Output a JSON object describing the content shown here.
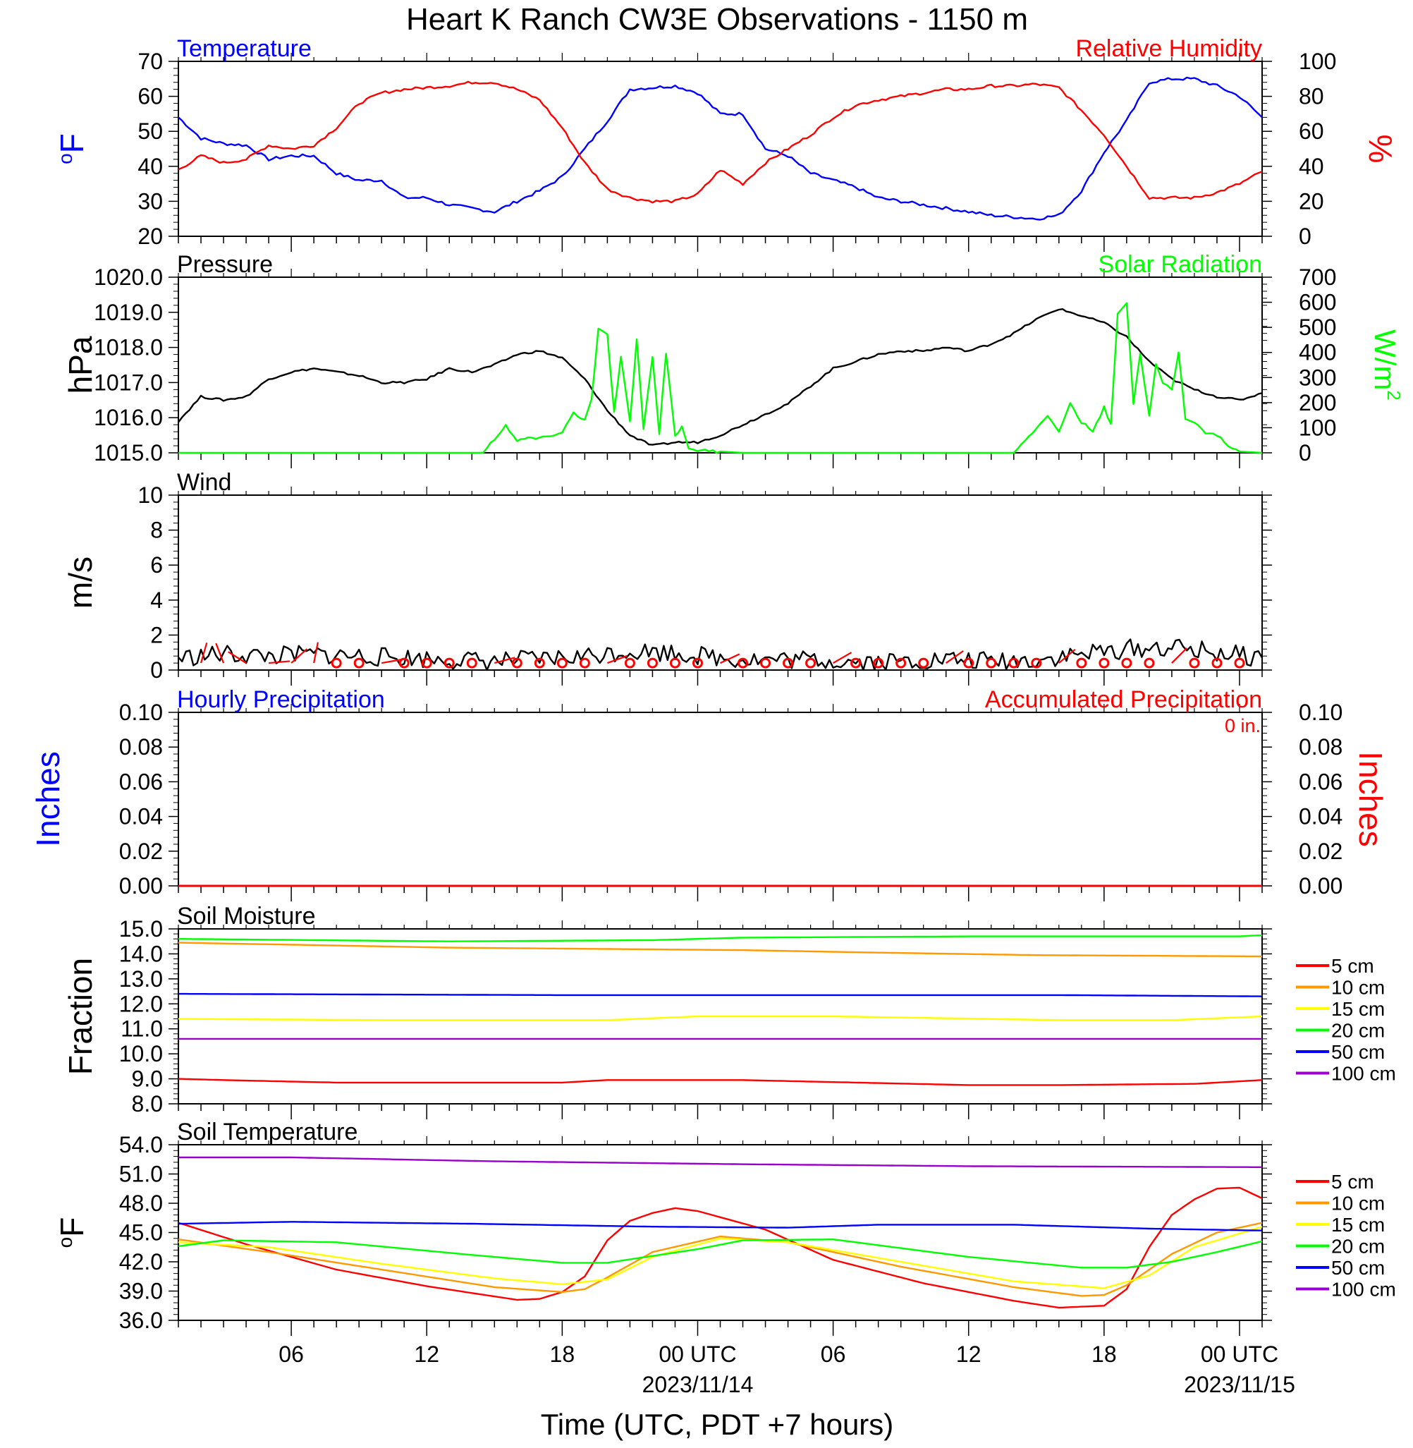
{
  "page": {
    "title": "Heart K Ranch CW3E Observations - 1150 m",
    "xlabel": "Time (UTC, PDT +7 hours)",
    "x_ticks": [
      {
        "hour": 6,
        "label": "06",
        "date": ""
      },
      {
        "hour": 12,
        "label": "12",
        "date": ""
      },
      {
        "hour": 18,
        "label": "18",
        "date": ""
      },
      {
        "hour": 24,
        "label": "00 UTC",
        "date": "2023/11/14"
      },
      {
        "hour": 30,
        "label": "06",
        "date": ""
      },
      {
        "hour": 36,
        "label": "12",
        "date": ""
      },
      {
        "hour": 42,
        "label": "18",
        "date": ""
      },
      {
        "hour": 48,
        "label": "00 UTC",
        "date": "2023/11/15"
      }
    ]
  },
  "chart_data": [
    {
      "id": "temp_rh",
      "type": "line",
      "x_unit": "hours UTC from 2023/11/13 00 UTC",
      "xlim": [
        1,
        49
      ],
      "left_title": "Temperature",
      "right_title": "Relative Humidity",
      "ylabel": "oF",
      "y2label": "%",
      "ylim": [
        20,
        70
      ],
      "y2lim": [
        0,
        100
      ],
      "yticks": [
        "20",
        "30",
        "40",
        "50",
        "60",
        "70"
      ],
      "y2ticks": [
        "0",
        "20",
        "40",
        "60",
        "80",
        "100"
      ],
      "series": [
        {
          "name": "Temperature",
          "axis": "left",
          "color": "#0000ff",
          "x": [
            1,
            2,
            3,
            4,
            5,
            6,
            7,
            8,
            9,
            10,
            11,
            12,
            13,
            14,
            15,
            16,
            17,
            18,
            19,
            20,
            21,
            22,
            23,
            24,
            25,
            26,
            27,
            28,
            29,
            30,
            31,
            32,
            33,
            34,
            35,
            36,
            37,
            38,
            39,
            40,
            41,
            42,
            43,
            44,
            45,
            46,
            47,
            48,
            49
          ],
          "y": [
            54,
            48,
            46.5,
            46,
            42,
            43,
            43,
            38,
            36,
            36,
            31,
            31,
            29,
            28,
            27,
            30,
            33,
            37,
            45,
            53,
            62,
            62.5,
            63,
            61,
            55,
            55,
            45,
            43,
            38,
            36,
            34,
            31,
            30,
            29,
            28,
            27,
            26,
            25.5,
            25,
            26,
            33,
            44,
            53,
            64,
            65,
            65,
            63,
            60,
            54
          ]
        },
        {
          "name": "Relative Humidity",
          "axis": "right",
          "color": "#ff0000",
          "x": [
            1,
            2,
            3,
            4,
            5,
            6,
            7,
            8,
            9,
            10,
            11,
            12,
            13,
            14,
            15,
            16,
            17,
            18,
            19,
            20,
            21,
            22,
            23,
            24,
            25,
            26,
            27,
            28,
            29,
            30,
            31,
            32,
            33,
            34,
            35,
            36,
            37,
            38,
            39,
            40,
            41,
            42,
            43,
            44,
            45,
            46,
            47,
            48,
            49
          ],
          "y": [
            38,
            46,
            42,
            44,
            52,
            50,
            52,
            62,
            76,
            82,
            84,
            85,
            86,
            88,
            88,
            84,
            78,
            62,
            42,
            27,
            22,
            20,
            20,
            24,
            38,
            30,
            42,
            50,
            58,
            68,
            75,
            78,
            80,
            82,
            84,
            84,
            86,
            86,
            87,
            85,
            72,
            58,
            40,
            22,
            22,
            22,
            25,
            30,
            37
          ]
        }
      ]
    },
    {
      "id": "pressure_solar",
      "type": "line",
      "xlim": [
        1,
        49
      ],
      "left_title": "Pressure",
      "right_title": "Solar Radiation",
      "ylabel": "hPa",
      "y2label": "W/m2",
      "ylim": [
        1015,
        1020
      ],
      "y2lim": [
        0,
        700
      ],
      "yticks": [
        "1015.0",
        "1016.0",
        "1017.0",
        "1018.0",
        "1019.0",
        "1020.0"
      ],
      "y2ticks": [
        "0",
        "100",
        "200",
        "300",
        "400",
        "500",
        "600",
        "700"
      ],
      "series": [
        {
          "name": "Pressure",
          "axis": "left",
          "color": "#000000",
          "x": [
            1,
            2,
            3,
            4,
            5,
            6,
            7,
            8,
            9,
            10,
            11,
            12,
            13,
            14,
            15,
            16,
            17,
            18,
            19,
            20,
            21,
            22,
            23,
            24,
            25,
            26,
            27,
            28,
            29,
            30,
            31,
            32,
            33,
            34,
            35,
            36,
            37,
            38,
            39,
            40,
            41,
            42,
            43,
            44,
            45,
            46,
            47,
            48,
            49
          ],
          "y": [
            1015.9,
            1016.6,
            1016.5,
            1016.6,
            1017.1,
            1017.3,
            1017.4,
            1017.3,
            1017.2,
            1017.0,
            1017.0,
            1017.1,
            1017.4,
            1017.3,
            1017.5,
            1017.8,
            1017.9,
            1017.7,
            1017.1,
            1016.2,
            1015.5,
            1015.2,
            1015.3,
            1015.3,
            1015.5,
            1015.8,
            1016.1,
            1016.4,
            1016.9,
            1017.4,
            1017.6,
            1017.8,
            1017.9,
            1017.9,
            1018.0,
            1017.9,
            1018.1,
            1018.4,
            1018.8,
            1019.1,
            1018.9,
            1018.7,
            1018.3,
            1017.6,
            1017.1,
            1016.8,
            1016.6,
            1016.5,
            1016.7
          ]
        },
        {
          "name": "Solar Radiation",
          "axis": "right",
          "color": "#00ff00",
          "x": [
            1,
            14.5,
            15.5,
            16,
            16.5,
            17,
            17.5,
            18,
            18.5,
            19,
            19.3,
            19.6,
            20,
            20.3,
            20.6,
            21,
            21.3,
            21.6,
            22,
            22.3,
            22.6,
            23,
            23.3,
            23.6,
            24,
            26,
            35,
            38,
            39,
            39.5,
            40,
            40.5,
            41,
            41.5,
            42,
            42.3,
            42.6,
            43,
            43.3,
            43.6,
            44,
            44.3,
            44.6,
            45,
            45.3,
            45.6,
            46,
            46.5,
            47,
            47.5,
            48,
            49
          ],
          "y": [
            0,
            0,
            110,
            45,
            60,
            55,
            70,
            80,
            160,
            130,
            210,
            490,
            470,
            160,
            380,
            120,
            450,
            100,
            380,
            80,
            400,
            70,
            100,
            20,
            10,
            0,
            0,
            0,
            100,
            150,
            80,
            200,
            120,
            90,
            180,
            110,
            550,
            600,
            200,
            400,
            150,
            350,
            280,
            250,
            400,
            140,
            120,
            80,
            70,
            30,
            5,
            0
          ]
        }
      ]
    },
    {
      "id": "wind",
      "type": "line",
      "xlim": [
        1,
        49
      ],
      "left_title": "Wind",
      "ylabel": "m/s",
      "ylim": [
        0,
        10
      ],
      "yticks": [
        "0",
        "2",
        "4",
        "6",
        "8",
        "10"
      ],
      "series": [
        {
          "name": "Wind",
          "axis": "left",
          "color": "#000000",
          "x": [
            1,
            3,
            5,
            7,
            9,
            11,
            13,
            15,
            17,
            19,
            21,
            23,
            25,
            27,
            29,
            31,
            33,
            35,
            37,
            39,
            41,
            43,
            45,
            47,
            49
          ],
          "y": [
            0.7,
            0.9,
            0.8,
            0.9,
            0.8,
            0.7,
            0.6,
            0.5,
            0.6,
            0.8,
            1.1,
            1.0,
            0.7,
            0.6,
            0.6,
            0.5,
            0.5,
            0.6,
            0.5,
            0.6,
            0.9,
            1.2,
            1.3,
            1.0,
            0.7
          ]
        }
      ]
    },
    {
      "id": "precip",
      "type": "line",
      "xlim": [
        1,
        49
      ],
      "left_title": "Hourly Precipitation",
      "right_title": "Accumulated Precipitation",
      "annotation": "0 in.",
      "ylabel": "Inches",
      "y2label": "Inches",
      "ylim": [
        0,
        0.1
      ],
      "y2lim": [
        0,
        0.1
      ],
      "yticks": [
        "0.00",
        "0.02",
        "0.04",
        "0.06",
        "0.08",
        "0.10"
      ],
      "y2ticks": [
        "0.00",
        "0.02",
        "0.04",
        "0.06",
        "0.08",
        "0.10"
      ],
      "series": [
        {
          "name": "Hourly Precipitation",
          "axis": "left",
          "color": "#0000ff",
          "x": [
            1,
            49
          ],
          "y": [
            0,
            0
          ]
        },
        {
          "name": "Accumulated Precipitation",
          "axis": "right",
          "color": "#ff0000",
          "x": [
            1,
            49
          ],
          "y": [
            0,
            0
          ]
        }
      ]
    },
    {
      "id": "soil_moisture",
      "type": "line",
      "xlim": [
        1,
        49
      ],
      "left_title": "Soil Moisture",
      "ylabel": "Fraction",
      "ylim": [
        8,
        15
      ],
      "yticks": [
        "8.0",
        "9.0",
        "10.0",
        "11.0",
        "12.0",
        "13.0",
        "14.0",
        "15.0"
      ],
      "legend_position": "right",
      "series": [
        {
          "name": "5 cm",
          "color": "#ff0000",
          "x": [
            1,
            3,
            8,
            18,
            20,
            26,
            36,
            40,
            46,
            49
          ],
          "y": [
            9.0,
            8.95,
            8.85,
            8.85,
            8.95,
            8.95,
            8.75,
            8.75,
            8.8,
            8.95
          ]
        },
        {
          "name": "10 cm",
          "color": "#ff9900",
          "x": [
            1,
            7,
            13,
            26,
            32,
            39,
            49
          ],
          "y": [
            14.45,
            14.35,
            14.25,
            14.15,
            14.05,
            13.95,
            13.9
          ]
        },
        {
          "name": "15 cm",
          "color": "#ffff00",
          "x": [
            1,
            10,
            20,
            24,
            30,
            40,
            45,
            49
          ],
          "y": [
            11.4,
            11.35,
            11.35,
            11.5,
            11.5,
            11.35,
            11.35,
            11.5
          ]
        },
        {
          "name": "20 cm",
          "color": "#00ff00",
          "x": [
            1,
            13,
            22,
            26,
            36,
            48,
            49
          ],
          "y": [
            14.6,
            14.5,
            14.55,
            14.65,
            14.7,
            14.7,
            14.75
          ]
        },
        {
          "name": "50 cm",
          "color": "#0000ff",
          "x": [
            1,
            18,
            26,
            40,
            49
          ],
          "y": [
            12.4,
            12.35,
            12.35,
            12.35,
            12.3
          ]
        },
        {
          "name": "100 cm",
          "color": "#9900cc",
          "x": [
            1,
            49
          ],
          "y": [
            10.6,
            10.6
          ]
        }
      ]
    },
    {
      "id": "soil_temperature",
      "type": "line",
      "xlim": [
        1,
        49
      ],
      "left_title": "Soil Temperature",
      "ylabel": "oF",
      "ylim": [
        36,
        54
      ],
      "yticks": [
        "36.0",
        "39.0",
        "42.0",
        "45.0",
        "48.0",
        "51.0",
        "54.0"
      ],
      "legend_position": "right",
      "series": [
        {
          "name": "5 cm",
          "color": "#ff0000",
          "x": [
            1,
            4,
            8,
            12,
            16,
            17,
            18,
            19,
            20,
            21,
            22,
            23,
            24,
            27,
            30,
            34,
            38,
            40,
            42,
            43,
            44,
            45,
            46,
            47,
            48,
            49
          ],
          "y": [
            46,
            43.8,
            41.2,
            39.5,
            38.1,
            38.2,
            38.9,
            40.5,
            44.2,
            46.2,
            47.0,
            47.5,
            47.2,
            45.3,
            42.2,
            39.8,
            38.0,
            37.3,
            37.5,
            39.2,
            43.5,
            46.8,
            48.4,
            49.5,
            49.6,
            48.5
          ]
        },
        {
          "name": "10 cm",
          "color": "#ff9900",
          "x": [
            1,
            5,
            10,
            15,
            18,
            19,
            20,
            22,
            25,
            28,
            33,
            38,
            41,
            42,
            43,
            45,
            47,
            49
          ],
          "y": [
            44.3,
            43.0,
            41.2,
            39.4,
            38.9,
            39.2,
            40.4,
            43.0,
            44.6,
            44.0,
            41.5,
            39.4,
            38.5,
            38.6,
            39.6,
            42.8,
            45.0,
            46.0
          ]
        },
        {
          "name": "15 cm",
          "color": "#ffff00",
          "x": [
            1,
            5,
            10,
            15,
            18,
            20,
            22,
            25,
            28,
            33,
            38,
            42,
            44,
            46,
            49
          ],
          "y": [
            44.0,
            43.5,
            41.8,
            40.3,
            39.7,
            40.2,
            42.5,
            44.4,
            44.0,
            42.0,
            40.0,
            39.3,
            40.6,
            43.5,
            45.6
          ]
        },
        {
          "name": "20 cm",
          "color": "#00ff00",
          "x": [
            1,
            3,
            8,
            14,
            18,
            20,
            24,
            26,
            30,
            36,
            41,
            43,
            45,
            47,
            49
          ],
          "y": [
            43.6,
            44.2,
            44.0,
            42.7,
            41.9,
            41.9,
            43.3,
            44.2,
            44.3,
            42.5,
            41.4,
            41.4,
            42.0,
            43.0,
            44.1
          ]
        },
        {
          "name": "50 cm",
          "color": "#0000ff",
          "x": [
            1,
            6,
            14,
            22,
            28,
            32,
            38,
            44,
            49
          ],
          "y": [
            45.9,
            46.1,
            45.9,
            45.6,
            45.5,
            45.8,
            45.8,
            45.4,
            45.2
          ]
        },
        {
          "name": "100 cm",
          "color": "#9900cc",
          "x": [
            1,
            6,
            15,
            26,
            36,
            49
          ],
          "y": [
            52.7,
            52.7,
            52.3,
            52.0,
            51.8,
            51.7
          ]
        }
      ]
    }
  ]
}
